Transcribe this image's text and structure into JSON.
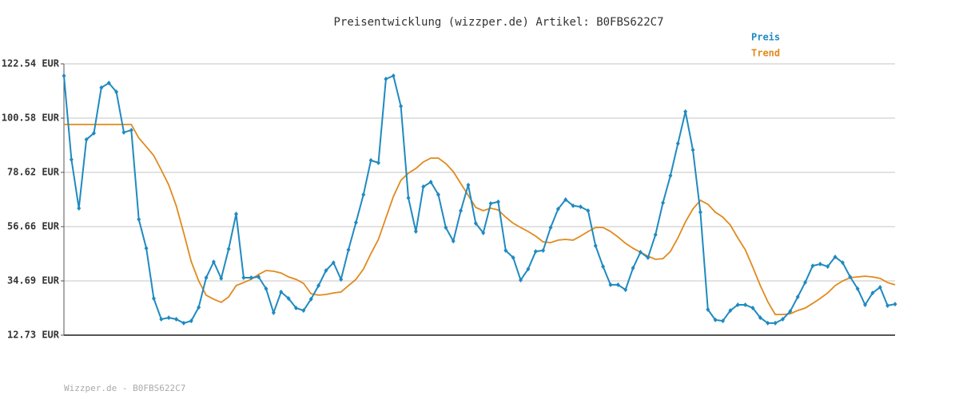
{
  "chart_data": {
    "type": "line",
    "title": "Preisentwicklung (wizzper.de) Artikel: B0FBS622C7",
    "footer": "Wizzper.de - B0FBS622C7",
    "ylim": [
      12.73,
      122.54
    ],
    "yticks": [
      {
        "value": 12.73,
        "label": "12.73 EUR"
      },
      {
        "value": 34.69,
        "label": "34.69 EUR"
      },
      {
        "value": 56.66,
        "label": "56.66 EUR"
      },
      {
        "value": 78.62,
        "label": "78.62 EUR"
      },
      {
        "value": 100.58,
        "label": "100.58 EUR"
      },
      {
        "value": 122.54,
        "label": "122.54 EUR"
      }
    ],
    "grid": true,
    "legend": "top-right",
    "series": [
      {
        "name": "Preis",
        "color": "#1f8ac0",
        "values": [
          117.7,
          83.8,
          64.1,
          91.9,
          94.5,
          112.9,
          114.8,
          111.2,
          94.8,
          95.7,
          59.6,
          47.9,
          27.6,
          19.2,
          19.8,
          19.2,
          17.6,
          18.5,
          24.0,
          36.0,
          42.4,
          35.7,
          47.6,
          61.8,
          36.0,
          36.0,
          36.3,
          31.5,
          21.8,
          30.2,
          27.6,
          23.7,
          22.7,
          27.3,
          32.8,
          38.9,
          42.1,
          35.3,
          47.3,
          58.3,
          69.6,
          83.5,
          82.5,
          116.4,
          117.7,
          105.4,
          68.3,
          54.7,
          72.8,
          74.7,
          69.6,
          56.3,
          50.8,
          63.1,
          73.5,
          58.0,
          54.1,
          66.0,
          66.7,
          47.0,
          44.1,
          35.0,
          39.5,
          46.6,
          47.0,
          56.3,
          63.8,
          67.6,
          65.1,
          64.7,
          63.1,
          48.9,
          40.5,
          33.1,
          33.1,
          31.1,
          39.9,
          46.3,
          44.1,
          53.4,
          66.3,
          77.3,
          90.3,
          103.2,
          87.7,
          62.5,
          23.1,
          18.9,
          18.5,
          22.7,
          25.0,
          25.0,
          23.7,
          19.8,
          17.6,
          17.6,
          19.2,
          22.4,
          28.2,
          34.1,
          40.8,
          41.5,
          40.5,
          44.4,
          42.1,
          36.3,
          31.5,
          25.0,
          29.8,
          32.1,
          24.7,
          25.3
        ]
      },
      {
        "name": "Trend",
        "color": "#e08a1e",
        "values": [
          98.0,
          98.0,
          98.0,
          98.0,
          98.0,
          98.0,
          98.0,
          98.0,
          98.0,
          98.0,
          92.5,
          89.0,
          85.4,
          79.6,
          73.5,
          65.1,
          54.1,
          42.5,
          34.7,
          28.9,
          27.3,
          26.0,
          28.2,
          32.8,
          34.0,
          35.3,
          37.3,
          38.9,
          38.6,
          37.9,
          36.3,
          35.3,
          33.7,
          29.5,
          28.9,
          29.2,
          29.8,
          30.2,
          32.8,
          35.3,
          39.5,
          45.7,
          51.5,
          60.2,
          68.9,
          75.4,
          78.3,
          80.2,
          82.8,
          84.4,
          84.4,
          82.2,
          78.9,
          74.1,
          69.3,
          64.4,
          63.1,
          64.1,
          63.4,
          60.5,
          58.0,
          56.3,
          54.7,
          52.8,
          50.5,
          50.2,
          51.2,
          51.5,
          51.2,
          52.8,
          54.7,
          56.3,
          56.3,
          54.7,
          52.5,
          49.9,
          47.9,
          46.3,
          44.7,
          43.4,
          43.7,
          46.6,
          52.1,
          58.6,
          63.8,
          67.3,
          65.7,
          62.5,
          60.5,
          57.3,
          52.1,
          47.3,
          40.2,
          32.8,
          26.3,
          21.1,
          21.1,
          21.4,
          22.7,
          23.7,
          25.6,
          27.6,
          29.8,
          32.8,
          34.7,
          36.0,
          36.3,
          36.6,
          36.3,
          35.7,
          34.0,
          33.1
        ]
      }
    ]
  }
}
